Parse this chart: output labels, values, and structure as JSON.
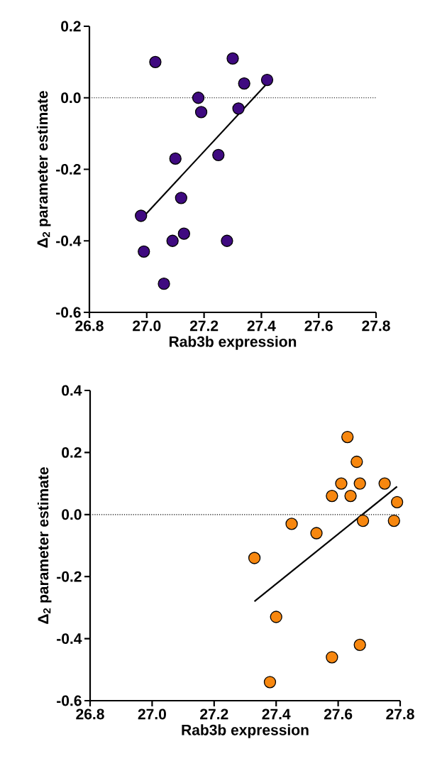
{
  "chart_data": [
    {
      "type": "scatter",
      "xlabel": "Rab3b expression",
      "ylabel": "Δ$_{2}$ parameter estimate",
      "xlim": [
        26.8,
        27.8
      ],
      "xticks": [
        26.8,
        {
          "value": 27,
          "label": "27.0"
        },
        27.2,
        27.4,
        27.6,
        27.8
      ],
      "ylim": [
        -0.6,
        0.2
      ],
      "yticks": [
        -0.6,
        -0.4,
        -0.2,
        {
          "value": 0,
          "label": "0.0"
        },
        0.2
      ],
      "grid": false,
      "ref_lines": [
        {
          "axis": "y",
          "value": 0,
          "line_style": "dotted",
          "color": "#000000"
        }
      ],
      "series": [
        {
          "type": "scatter",
          "marker": "circle",
          "color": "#3f0a80",
          "x": [
            27.03,
            27.3,
            27.34,
            27.42,
            27.18,
            27.19,
            27.32,
            27.1,
            27.25,
            27.12,
            26.98,
            27.13,
            27.09,
            27.28,
            26.99,
            27.06
          ],
          "values": [
            0.1,
            0.11,
            0.04,
            0.05,
            0.0,
            -0.04,
            -0.03,
            -0.17,
            -0.16,
            -0.28,
            -0.33,
            -0.38,
            -0.4,
            -0.4,
            -0.43,
            -0.52
          ]
        },
        {
          "type": "line",
          "marker": "none",
          "color": "#000000",
          "x": [
            26.98,
            27.42
          ],
          "values": [
            -0.34,
            0.04
          ]
        }
      ]
    },
    {
      "type": "scatter",
      "xlabel": "Rab3b expression",
      "ylabel": "Δ$_{2}$ parameter estimate",
      "xlim": [
        26.8,
        27.8
      ],
      "xticks": [
        26.8,
        {
          "value": 27,
          "label": "27.0"
        },
        27.2,
        27.4,
        27.6,
        27.8
      ],
      "ylim": [
        -0.6,
        0.4
      ],
      "yticks": [
        -0.6,
        -0.4,
        -0.2,
        {
          "value": 0,
          "label": "0.0"
        },
        0.2,
        0.4
      ],
      "grid": false,
      "ref_lines": [
        {
          "axis": "y",
          "value": 0,
          "line_style": "dotted",
          "color": "#000000"
        }
      ],
      "series": [
        {
          "type": "scatter",
          "marker": "circle",
          "color": "#f7870f",
          "x": [
            27.63,
            27.66,
            27.61,
            27.67,
            27.75,
            27.58,
            27.64,
            27.79,
            27.68,
            27.78,
            27.45,
            27.53,
            27.33,
            27.4,
            27.67,
            27.58,
            27.38
          ],
          "values": [
            0.25,
            0.17,
            0.1,
            0.1,
            0.1,
            0.06,
            0.06,
            0.04,
            -0.02,
            -0.02,
            -0.03,
            -0.06,
            -0.14,
            -0.33,
            -0.42,
            -0.46,
            -0.54
          ]
        },
        {
          "type": "line",
          "marker": "none",
          "color": "#000000",
          "x": [
            27.33,
            27.79
          ],
          "values": [
            -0.28,
            0.09
          ]
        }
      ]
    }
  ]
}
